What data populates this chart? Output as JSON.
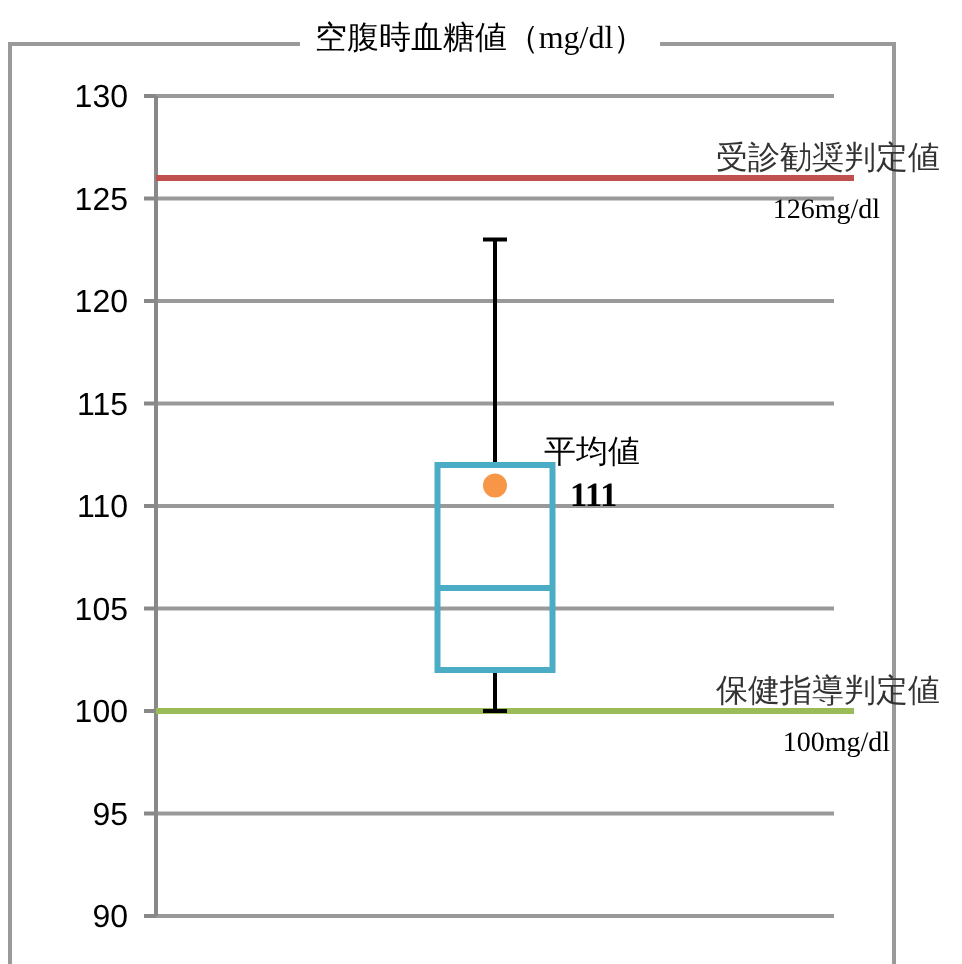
{
  "chart_data": {
    "type": "box",
    "title": "空腹時血糖値（mg/dl）",
    "categories": [
      null
    ],
    "boxes": [
      {
        "low": 100,
        "q1": 102,
        "median": 106,
        "q3": 112,
        "high": 123,
        "mean": 111
      }
    ],
    "color": "#4bacc6",
    "ylim": [
      90,
      130
    ],
    "yticks": [
      90,
      95,
      100,
      105,
      110,
      115,
      120,
      125,
      130
    ],
    "grid": "y",
    "ref_lines": [
      {
        "axis": "y",
        "value": 126,
        "label": "受診勧奨判定値",
        "color": "#c0504d"
      },
      {
        "axis": "y",
        "value": 100,
        "label": "保健指導判定値",
        "color": "#9bbb59"
      }
    ],
    "annotations": [
      {
        "text": "126mg/dl",
        "y": 126
      },
      {
        "text": "100mg/dl",
        "y": 100
      },
      "平均値",
      "111"
    ]
  }
}
